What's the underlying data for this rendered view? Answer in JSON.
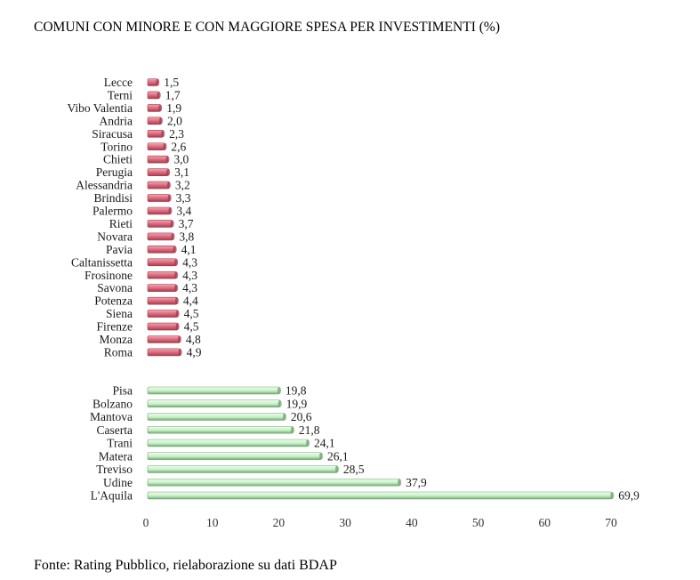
{
  "title": "COMUNI CON MINORE E CON MAGGIORE SPESA PER INVESTIMENTI (%)",
  "source": "Fonte: Rating Pubblico, rielaborazione su dati BDAP",
  "chart_data": {
    "type": "bar",
    "orientation": "horizontal",
    "title": "COMUNI CON MINORE E CON MAGGIORE SPESA PER INVESTIMENTI (%)",
    "xlim": [
      0,
      70
    ],
    "xticks": [
      0,
      10,
      20,
      30,
      40,
      50,
      60,
      70
    ],
    "grid": false,
    "legend": "none",
    "value_format": "comma-decimal",
    "groups": [
      {
        "name": "",
        "color": "#d9667a",
        "color_dark": "#a83a4e",
        "color_light": "#f0a8b4",
        "categories": [
          "Lecce",
          "Terni",
          "Vibo Valentia",
          "Andria",
          "Siracusa",
          "Torino",
          "Chieti",
          "Perugia",
          "Alessandria",
          "Brindisi",
          "Palermo",
          "Rieti",
          "Novara",
          "Pavia",
          "Caltanissetta",
          "Frosinone",
          "Savona",
          "Potenza",
          "Siena",
          "Firenze",
          "Monza",
          "Roma"
        ],
        "values": [
          1.5,
          1.7,
          1.9,
          2.0,
          2.3,
          2.6,
          3.0,
          3.1,
          3.2,
          3.3,
          3.4,
          3.7,
          3.8,
          4.1,
          4.3,
          4.3,
          4.3,
          4.4,
          4.5,
          4.5,
          4.8,
          4.9
        ],
        "labels": [
          "1,5",
          "1,7",
          "1,9",
          "2,0",
          "2,3",
          "2,6",
          "3,0",
          "3,1",
          "3,2",
          "3,3",
          "3,4",
          "3,7",
          "3,8",
          "4,1",
          "4,3",
          "4,3",
          "4,3",
          "4,4",
          "4,5",
          "4,5",
          "4,8",
          "4,9"
        ]
      },
      {
        "name": "",
        "color": "#c8f0c8",
        "color_dark": "#6fa86f",
        "color_light": "#eefcee",
        "categories": [
          "Pisa",
          "Bolzano",
          "Mantova",
          "Caserta",
          "Trani",
          "Matera",
          "Treviso",
          "Udine",
          "L'Aquila"
        ],
        "values": [
          19.8,
          19.9,
          20.6,
          21.8,
          24.1,
          26.1,
          28.5,
          37.9,
          69.9
        ],
        "labels": [
          "19,8",
          "19,9",
          "20,6",
          "21,8",
          "24,1",
          "26,1",
          "28,5",
          "37,9",
          "69,9"
        ]
      }
    ]
  }
}
